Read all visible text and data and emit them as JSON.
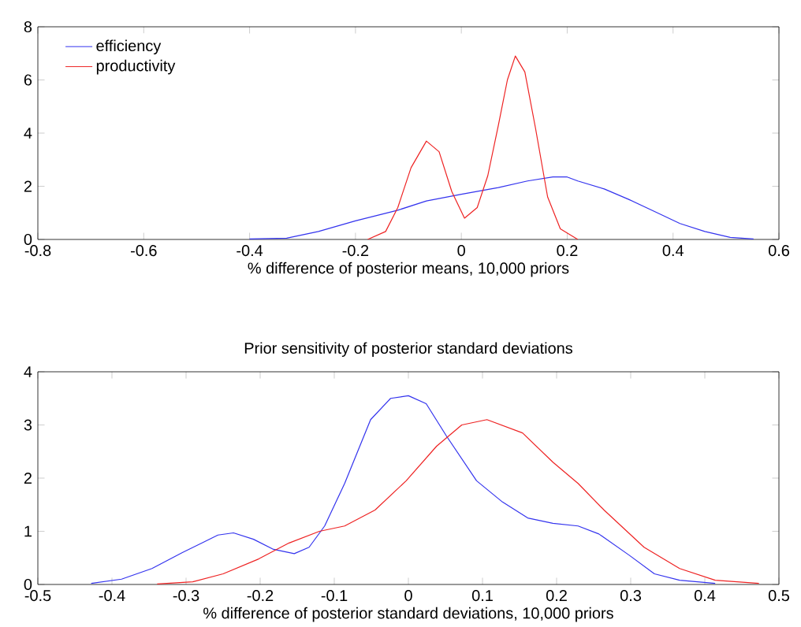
{
  "chart_data": [
    {
      "type": "line",
      "xlabel": "% difference of posterior means, 10,000 priors",
      "xlim": [
        -0.8,
        0.6
      ],
      "xticks": [
        -0.8,
        -0.6,
        -0.4,
        -0.2,
        0,
        0.2,
        0.4,
        0.6
      ],
      "ylim": [
        0,
        8
      ],
      "yticks": [
        0,
        2,
        4,
        6,
        8
      ],
      "legend": "top left",
      "grid": false,
      "marker": "none",
      "line_style": "solid",
      "series": [
        {
          "name": "efficiency",
          "color": "#3333ee",
          "x": [
            -0.4,
            -0.33,
            -0.27,
            -0.2,
            -0.12,
            -0.066,
            0.0,
            0.07,
            0.125,
            0.173,
            0.2,
            0.22,
            0.27,
            0.317,
            0.365,
            0.413,
            0.46,
            0.508,
            0.552
          ],
          "values": [
            0.02,
            0.05,
            0.3,
            0.7,
            1.1,
            1.45,
            1.7,
            1.95,
            2.2,
            2.35,
            2.35,
            2.2,
            1.9,
            1.5,
            1.05,
            0.6,
            0.3,
            0.08,
            0.02
          ]
        },
        {
          "name": "productivity",
          "color": "#ee2222",
          "x": [
            -0.177,
            -0.143,
            -0.12,
            -0.095,
            -0.066,
            -0.042,
            -0.018,
            0.006,
            0.03,
            0.05,
            0.07,
            0.087,
            0.102,
            0.12,
            0.14,
            0.163,
            0.187,
            0.22
          ],
          "values": [
            0,
            0.3,
            1.2,
            2.7,
            3.7,
            3.3,
            1.8,
            0.8,
            1.2,
            2.4,
            4.3,
            6.0,
            6.9,
            6.3,
            4.2,
            1.6,
            0.4,
            0
          ]
        }
      ]
    },
    {
      "type": "line",
      "title": "Prior sensitivity of posterior standard deviations",
      "xlabel": "% difference of posterior standard deviations, 10,000 priors",
      "xlim": [
        -0.5,
        0.5
      ],
      "xticks": [
        -0.5,
        -0.4,
        -0.3,
        -0.2,
        -0.1,
        0,
        0.1,
        0.2,
        0.3,
        0.4,
        0.5
      ],
      "ylim": [
        0,
        4
      ],
      "yticks": [
        0,
        1,
        2,
        3,
        4
      ],
      "grid": false,
      "marker": "none",
      "line_style": "solid",
      "series": [
        {
          "color": "#3333ee",
          "x": [
            -0.428,
            -0.387,
            -0.346,
            -0.305,
            -0.257,
            -0.236,
            -0.209,
            -0.182,
            -0.154,
            -0.134,
            -0.113,
            -0.086,
            -0.051,
            -0.024,
            0.0,
            0.024,
            0.051,
            0.092,
            0.127,
            0.161,
            0.195,
            0.229,
            0.257,
            0.298,
            0.332,
            0.366,
            0.414
          ],
          "values": [
            0.02,
            0.1,
            0.3,
            0.6,
            0.93,
            0.97,
            0.85,
            0.66,
            0.58,
            0.7,
            1.1,
            1.9,
            3.1,
            3.5,
            3.55,
            3.4,
            2.8,
            1.95,
            1.55,
            1.25,
            1.15,
            1.1,
            0.95,
            0.55,
            0.2,
            0.08,
            0.02
          ]
        },
        {
          "color": "#ee2222",
          "x": [
            -0.339,
            -0.291,
            -0.25,
            -0.202,
            -0.161,
            -0.12,
            -0.086,
            -0.045,
            -0.003,
            0.038,
            0.072,
            0.106,
            0.154,
            0.195,
            0.229,
            0.264,
            0.318,
            0.366,
            0.414,
            0.473
          ],
          "values": [
            0.01,
            0.05,
            0.2,
            0.48,
            0.78,
            1.0,
            1.1,
            1.4,
            1.95,
            2.6,
            3.0,
            3.1,
            2.85,
            2.3,
            1.9,
            1.4,
            0.7,
            0.3,
            0.08,
            0.02
          ]
        }
      ]
    }
  ]
}
